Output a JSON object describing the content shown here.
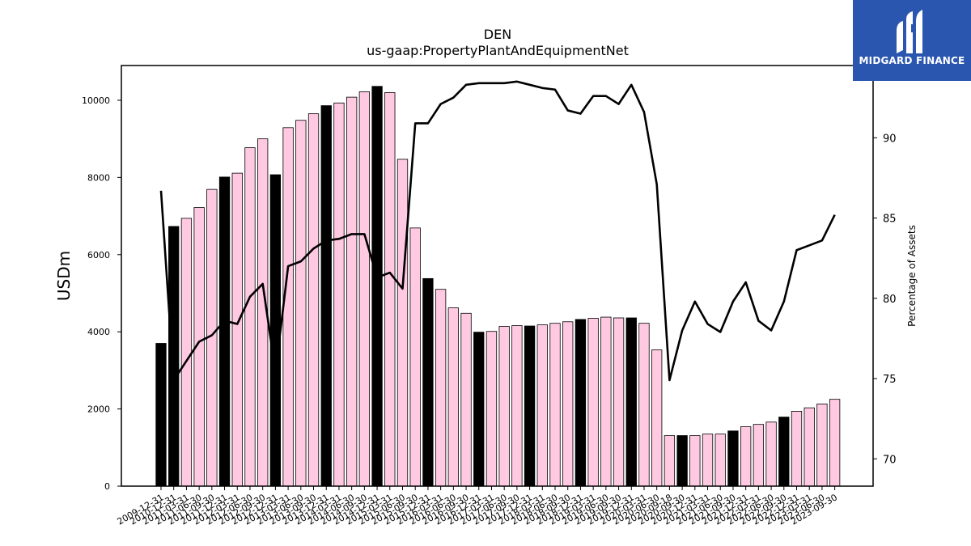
{
  "chart_data": {
    "type": "bar",
    "title": "DEN",
    "subtitle": "us-gaap:PropertyPlantAndEquipmentNet",
    "ylabel": "USDm",
    "y2label": "Percentage of Assets",
    "ylim": [
      0,
      10900
    ],
    "y2lim": [
      68.3,
      94.5
    ],
    "yticks": [
      0,
      2000,
      4000,
      6000,
      8000,
      10000
    ],
    "y2ticks": [
      70,
      75,
      80,
      85,
      90
    ],
    "categories": [
      "2009-12-31",
      "2010-12-31",
      "2011-03-31",
      "2011-06-30",
      "2011-09-30",
      "2011-12-31",
      "2012-03-31",
      "2012-06-30",
      "2012-09-30",
      "2012-12-31",
      "2013-03-31",
      "2013-06-30",
      "2013-09-30",
      "2013-12-31",
      "2014-03-31",
      "2014-06-30",
      "2014-09-30",
      "2014-12-31",
      "2015-03-31",
      "2015-06-30",
      "2015-09-30",
      "2015-12-31",
      "2016-03-31",
      "2016-06-30",
      "2016-09-30",
      "2016-12-31",
      "2017-03-31",
      "2017-06-30",
      "2017-09-30",
      "2017-12-31",
      "2018-03-31",
      "2018-06-30",
      "2018-09-30",
      "2018-12-31",
      "2019-03-31",
      "2019-06-30",
      "2019-09-30",
      "2019-12-31",
      "2020-03-31",
      "2020-06-30",
      "2020-09-18",
      "2020-09-30",
      "2020-12-31",
      "2021-03-31",
      "2021-06-30",
      "2021-09-30",
      "2021-12-31",
      "2022-03-31",
      "2022-06-30",
      "2022-09-30",
      "2022-12-31",
      "2023-03-31",
      "2023-06-30",
      "2023-09-30"
    ],
    "series": [
      {
        "name": "",
        "axis": "left",
        "values": [
          3700,
          6730,
          6940,
          7220,
          7690,
          8010,
          8110,
          8770,
          9000,
          8070,
          9290,
          9480,
          9650,
          9860,
          9930,
          10080,
          10220,
          10360,
          10200,
          8470,
          6690,
          5380,
          5100,
          4620,
          4480,
          3990,
          4010,
          4140,
          4160,
          4150,
          4180,
          4220,
          4260,
          4320,
          4350,
          4380,
          4360,
          4360,
          4220,
          3530,
          1310,
          1310,
          1310,
          1350,
          1350,
          1430,
          1540,
          1600,
          1660,
          1790,
          1940,
          2030,
          2130,
          2250
        ]
      },
      {
        "name": "",
        "axis": "right",
        "values": [
          86.7,
          74.9,
          76.1,
          77.3,
          77.7,
          78.6,
          78.4,
          80.1,
          80.9,
          75.4,
          82.0,
          82.3,
          83.1,
          83.6,
          83.7,
          84.0,
          84.0,
          81.3,
          81.6,
          80.6,
          90.9,
          90.9,
          92.1,
          92.5,
          93.3,
          93.4,
          93.4,
          93.4,
          93.5,
          93.3,
          93.1,
          93.0,
          91.7,
          91.5,
          92.6,
          92.6,
          92.1,
          93.3,
          91.6,
          87.1,
          74.9,
          78.0,
          79.8,
          78.4,
          77.9,
          79.8,
          81.0,
          78.6,
          78.0,
          79.8,
          83.0,
          83.3,
          83.6,
          85.2
        ]
      }
    ],
    "annual_flags": [
      1,
      1,
      0,
      0,
      0,
      1,
      0,
      0,
      0,
      1,
      0,
      0,
      0,
      1,
      0,
      0,
      0,
      1,
      0,
      0,
      0,
      1,
      0,
      0,
      0,
      1,
      0,
      0,
      0,
      1,
      0,
      0,
      0,
      1,
      0,
      0,
      0,
      1,
      0,
      0,
      0,
      1,
      0,
      0,
      0,
      1,
      0,
      0,
      0,
      1,
      0,
      0,
      0,
      0
    ],
    "colors": {
      "annual_bar": "#000000",
      "quarter_bar": "#ffc9e1",
      "bar_edge": "#000000",
      "line": "#000000"
    },
    "grid": false,
    "legend": "none"
  },
  "brand": {
    "name": "MIDGARD FINANCE",
    "background": "#2a56b0"
  }
}
